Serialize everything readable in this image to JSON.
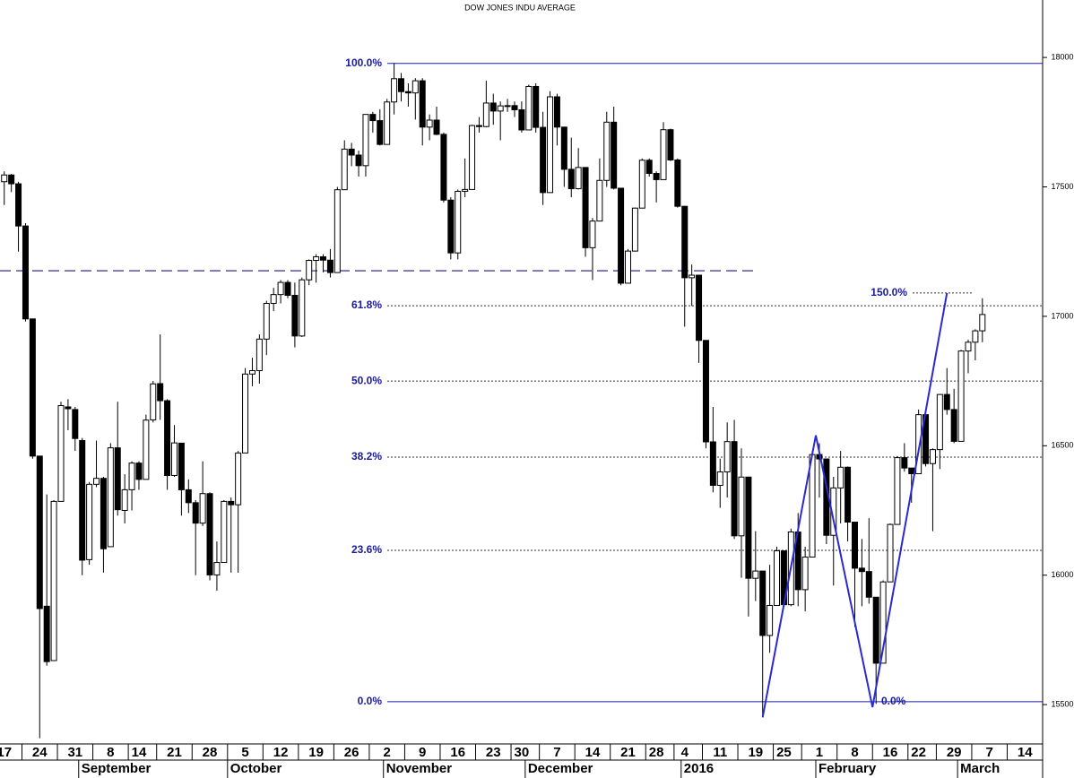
{
  "chart_data": {
    "type": "candlestick",
    "title": "DOW JONES INDU AVERAGE",
    "ohlc": [
      [
        17520,
        17560,
        17430,
        17546
      ],
      [
        17546,
        17550,
        17480,
        17512
      ],
      [
        17512,
        17520,
        17250,
        17349
      ],
      [
        17349,
        17360,
        16980,
        16990
      ],
      [
        16990,
        16990,
        16450,
        16460
      ],
      [
        16460,
        16460,
        15370,
        15871
      ],
      [
        15880,
        16312,
        15650,
        15666
      ],
      [
        15670,
        16290,
        15680,
        16285
      ],
      [
        16285,
        16670,
        16285,
        16655
      ],
      [
        16650,
        16680,
        16560,
        16643
      ],
      [
        16640,
        16650,
        16480,
        16528
      ],
      [
        16520,
        16530,
        16000,
        16058
      ],
      [
        16060,
        16360,
        16040,
        16351
      ],
      [
        16351,
        16520,
        16340,
        16374
      ],
      [
        16374,
        16380,
        16010,
        16102
      ],
      [
        16110,
        16510,
        16110,
        16492
      ],
      [
        16492,
        16670,
        16230,
        16253
      ],
      [
        16250,
        16390,
        16200,
        16330
      ],
      [
        16330,
        16440,
        16250,
        16433
      ],
      [
        16433,
        16440,
        16330,
        16370
      ],
      [
        16370,
        16620,
        16370,
        16599
      ],
      [
        16600,
        16750,
        16590,
        16739
      ],
      [
        16740,
        16930,
        16600,
        16674
      ],
      [
        16674,
        16680,
        16330,
        16385
      ],
      [
        16385,
        16580,
        16380,
        16511
      ],
      [
        16510,
        16510,
        16230,
        16330
      ],
      [
        16330,
        16370,
        16240,
        16280
      ],
      [
        16280,
        16290,
        16000,
        16201
      ],
      [
        16201,
        16440,
        16190,
        16315
      ],
      [
        16315,
        16320,
        15980,
        16001
      ],
      [
        16001,
        16130,
        15940,
        16049
      ],
      [
        16049,
        16290,
        16049,
        16285
      ],
      [
        16285,
        16300,
        16010,
        16272
      ],
      [
        16272,
        16480,
        16010,
        16472
      ],
      [
        16472,
        16800,
        16472,
        16777
      ],
      [
        16777,
        16840,
        16730,
        16790
      ],
      [
        16790,
        16930,
        16740,
        16912
      ],
      [
        16912,
        17060,
        16850,
        17050
      ],
      [
        17050,
        17110,
        17020,
        17084
      ],
      [
        17084,
        17140,
        17050,
        17131
      ],
      [
        17131,
        17140,
        17070,
        17081
      ],
      [
        17081,
        17130,
        16880,
        16924
      ],
      [
        16924,
        17150,
        16920,
        17141
      ],
      [
        17141,
        17220,
        17120,
        17216
      ],
      [
        17216,
        17240,
        17130,
        17230
      ],
      [
        17230,
        17240,
        17170,
        17217
      ],
      [
        17217,
        17260,
        17150,
        17169
      ],
      [
        17169,
        17500,
        17169,
        17489
      ],
      [
        17489,
        17680,
        17489,
        17646
      ],
      [
        17646,
        17670,
        17580,
        17623
      ],
      [
        17623,
        17640,
        17540,
        17582
      ],
      [
        17582,
        17780,
        17540,
        17780
      ],
      [
        17780,
        17790,
        17710,
        17756
      ],
      [
        17756,
        17800,
        17660,
        17664
      ],
      [
        17664,
        17840,
        17664,
        17828
      ],
      [
        17828,
        17978,
        17780,
        17918
      ],
      [
        17918,
        17940,
        17830,
        17868
      ],
      [
        17868,
        17900,
        17810,
        17863
      ],
      [
        17863,
        17920,
        17760,
        17910
      ],
      [
        17910,
        17920,
        17660,
        17731
      ],
      [
        17731,
        17780,
        17680,
        17758
      ],
      [
        17758,
        17810,
        17700,
        17703
      ],
      [
        17703,
        17710,
        17440,
        17449
      ],
      [
        17449,
        17460,
        17220,
        17245
      ],
      [
        17245,
        17490,
        17220,
        17483
      ],
      [
        17483,
        17610,
        17460,
        17490
      ],
      [
        17490,
        17740,
        17490,
        17737
      ],
      [
        17737,
        17770,
        17710,
        17733
      ],
      [
        17733,
        17910,
        17730,
        17824
      ],
      [
        17824,
        17860,
        17740,
        17793
      ],
      [
        17793,
        17830,
        17680,
        17813
      ],
      [
        17813,
        17840,
        17790,
        17814
      ],
      [
        17814,
        17830,
        17770,
        17798
      ],
      [
        17798,
        17830,
        17710,
        17720
      ],
      [
        17720,
        17895,
        17720,
        17888
      ],
      [
        17888,
        17900,
        17710,
        17730
      ],
      [
        17730,
        17790,
        17430,
        17478
      ],
      [
        17478,
        17870,
        17478,
        17848
      ],
      [
        17848,
        17860,
        17660,
        17731
      ],
      [
        17731,
        17731,
        17500,
        17568
      ],
      [
        17568,
        17690,
        17460,
        17493
      ],
      [
        17493,
        17650,
        17490,
        17575
      ],
      [
        17575,
        17575,
        17230,
        17265
      ],
      [
        17265,
        17380,
        17140,
        17368
      ],
      [
        17368,
        17610,
        17368,
        17525
      ],
      [
        17525,
        17790,
        17500,
        17750
      ],
      [
        17750,
        17810,
        17490,
        17495
      ],
      [
        17495,
        17495,
        17120,
        17128
      ],
      [
        17128,
        17260,
        17130,
        17252
      ],
      [
        17252,
        17420,
        17250,
        17418
      ],
      [
        17418,
        17610,
        17418,
        17603
      ],
      [
        17603,
        17610,
        17540,
        17552
      ],
      [
        17552,
        17560,
        17440,
        17528
      ],
      [
        17528,
        17750,
        17528,
        17721
      ],
      [
        17721,
        17725,
        17600,
        17604
      ],
      [
        17604,
        17610,
        17420,
        17425
      ],
      [
        17425,
        17425,
        16960,
        17149
      ],
      [
        17149,
        17200,
        17040,
        17159
      ],
      [
        17159,
        17159,
        16820,
        16907
      ],
      [
        16907,
        16907,
        16490,
        16515
      ],
      [
        16515,
        16650,
        16320,
        16347
      ],
      [
        16347,
        16450,
        16260,
        16399
      ],
      [
        16399,
        16590,
        16300,
        16516
      ],
      [
        16516,
        16600,
        16140,
        16152
      ],
      [
        16152,
        16490,
        15990,
        16379
      ],
      [
        16379,
        16379,
        15840,
        15988
      ],
      [
        15988,
        16170,
        15900,
        16016
      ],
      [
        16016,
        16016,
        15451,
        15767
      ],
      [
        15767,
        16040,
        15700,
        15883
      ],
      [
        15883,
        16110,
        15883,
        16094
      ],
      [
        16094,
        16094,
        15880,
        15886
      ],
      [
        15886,
        16180,
        15880,
        16167
      ],
      [
        16167,
        16240,
        15880,
        15944
      ],
      [
        15944,
        16110,
        15860,
        16070
      ],
      [
        16070,
        16480,
        16070,
        16466
      ],
      [
        16466,
        16510,
        16300,
        16449
      ],
      [
        16449,
        16449,
        16120,
        16154
      ],
      [
        16154,
        16380,
        15960,
        16337
      ],
      [
        16337,
        16480,
        16200,
        16417
      ],
      [
        16417,
        16420,
        16130,
        16205
      ],
      [
        16205,
        16205,
        15800,
        16027
      ],
      [
        16027,
        16140,
        15880,
        16014
      ],
      [
        16014,
        16220,
        15890,
        15915
      ],
      [
        15915,
        15915,
        15503,
        15660
      ],
      [
        15660,
        15980,
        15660,
        15974
      ],
      [
        15974,
        16200,
        15974,
        16196
      ],
      [
        16196,
        16460,
        16196,
        16454
      ],
      [
        16454,
        16510,
        16400,
        16414
      ],
      [
        16414,
        16414,
        16280,
        16392
      ],
      [
        16392,
        16640,
        16392,
        16620
      ],
      [
        16620,
        16620,
        16420,
        16431
      ],
      [
        16431,
        16490,
        16170,
        16485
      ],
      [
        16485,
        16700,
        16410,
        16698
      ],
      [
        16698,
        16800,
        16620,
        16640
      ],
      [
        16640,
        16720,
        16510,
        16517
      ],
      [
        16517,
        16870,
        16517,
        16866
      ],
      [
        16866,
        16910,
        16780,
        16900
      ],
      [
        16900,
        16950,
        16830,
        16944
      ],
      [
        16944,
        17070,
        16900,
        17007
      ]
    ],
    "xlim": [
      -0.6,
      146.5
    ],
    "xticks": [
      {
        "value": 0,
        "label": "17"
      },
      {
        "value": 5,
        "label": "24"
      },
      {
        "value": 10,
        "label": "31"
      },
      {
        "value": 15,
        "label": "8"
      },
      {
        "value": 19,
        "label": "14"
      },
      {
        "value": 24,
        "label": "21"
      },
      {
        "value": 29,
        "label": "28"
      },
      {
        "value": 34,
        "label": "5"
      },
      {
        "value": 39,
        "label": "12"
      },
      {
        "value": 44,
        "label": "19"
      },
      {
        "value": 49,
        "label": "26"
      },
      {
        "value": 54,
        "label": "2"
      },
      {
        "value": 59,
        "label": "9"
      },
      {
        "value": 64,
        "label": "16"
      },
      {
        "value": 69,
        "label": "23"
      },
      {
        "value": 73,
        "label": "30"
      },
      {
        "value": 78,
        "label": "7"
      },
      {
        "value": 83,
        "label": "14"
      },
      {
        "value": 88,
        "label": "21"
      },
      {
        "value": 92,
        "label": "28"
      },
      {
        "value": 96,
        "label": "4"
      },
      {
        "value": 101,
        "label": "11"
      },
      {
        "value": 106,
        "label": "19"
      },
      {
        "value": 110,
        "label": "25"
      },
      {
        "value": 115,
        "label": "1"
      },
      {
        "value": 120,
        "label": "8"
      },
      {
        "value": 125,
        "label": "16"
      },
      {
        "value": 129,
        "label": "22"
      },
      {
        "value": 134,
        "label": "29"
      },
      {
        "value": 139,
        "label": "7"
      },
      {
        "value": 144,
        "label": "14"
      }
    ],
    "month_ticks": [
      {
        "value": 11,
        "label": "September"
      },
      {
        "value": 32,
        "label": "October"
      },
      {
        "value": 54,
        "label": "November"
      },
      {
        "value": 74,
        "label": "December"
      },
      {
        "value": 96,
        "label": "2016"
      },
      {
        "value": 115,
        "label": "February"
      },
      {
        "value": 135,
        "label": "March"
      }
    ],
    "ylim": [
      15348,
      18222
    ],
    "yticks": [
      15500,
      16000,
      16500,
      17000,
      17500,
      18000
    ],
    "fib_levels": [
      {
        "value": 17977,
        "label": "100.0%"
      },
      {
        "value": 17041,
        "label": "61.8%"
      },
      {
        "value": 16750,
        "label": "50.0%"
      },
      {
        "value": 16456,
        "label": "38.2%"
      },
      {
        "value": 16096,
        "label": "23.6%"
      },
      {
        "value": 15511,
        "label": "0.0%"
      }
    ],
    "extension_level": {
      "value": 17090,
      "label": "150.0%"
    },
    "second_low_label": {
      "value": 15511,
      "label": "0.0%"
    },
    "reference_line": 17176,
    "pattern_line": {
      "x": [
        107,
        114.5,
        122.5,
        133
      ],
      "values": [
        15451,
        16540,
        15490,
        17090
      ],
      "color": "#2a2ad0"
    },
    "colors": {
      "up": "#ffffff",
      "down": "#000000",
      "fib": "#1a1aa0",
      "reference": "#1a1a80"
    }
  }
}
